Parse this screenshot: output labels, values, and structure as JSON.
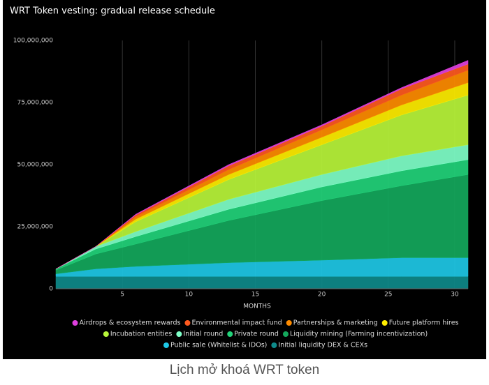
{
  "chart_data": {
    "type": "stacked_area",
    "title": "WRT Token vesting: gradual release schedule",
    "x_label": "MONTHS",
    "x": [
      0,
      3,
      6,
      13,
      20,
      26,
      31
    ],
    "xlim": [
      0,
      31
    ],
    "xticks": [
      5,
      10,
      15,
      20,
      25,
      30
    ],
    "ylim": [
      0,
      100000000
    ],
    "yticks": [
      0,
      {
        "value": 25000000,
        "label": "25,000,000"
      },
      {
        "value": 50000000,
        "label": "50,000,000"
      },
      {
        "value": 75000000,
        "label": "75,000,000"
      },
      {
        "value": 100000000,
        "label": "100,000,000"
      }
    ],
    "grid": true,
    "series": [
      {
        "name": "Initial liquidity DEX & CEXs",
        "color": "#0e8a8a",
        "values": [
          5000000,
          5000000,
          5000000,
          5000000,
          5000000,
          5000000,
          5000000
        ]
      },
      {
        "name": "Public sale (Whitelist & IDOs)",
        "color": "#1ec8e6",
        "values": [
          1000000,
          3000000,
          4000000,
          5500000,
          6500000,
          7500000,
          7500000
        ]
      },
      {
        "name": "Liquidity mining (Farming incentivization)",
        "color": "#14a85c",
        "values": [
          1500000,
          6000000,
          9000000,
          17000000,
          24000000,
          29000000,
          33500000
        ]
      },
      {
        "name": "Private round",
        "color": "#22d37a",
        "values": [
          500000,
          2000000,
          3000000,
          4500000,
          5500000,
          6000000,
          6000000
        ]
      },
      {
        "name": "Initial round",
        "color": "#7fffc8",
        "values": [
          0,
          1000000,
          2000000,
          4000000,
          5000000,
          6000000,
          6000000
        ]
      },
      {
        "name": "Incubation entities",
        "color": "#b8f53a",
        "values": [
          0,
          0,
          4000000,
          8000000,
          12000000,
          16500000,
          20000000
        ]
      },
      {
        "name": "Future platform hires",
        "color": "#ffee00",
        "values": [
          0,
          0,
          1000000,
          2000000,
          3000000,
          4000000,
          5000000
        ]
      },
      {
        "name": "Partnerships & marketing",
        "color": "#ff8c00",
        "values": [
          0,
          0,
          1000000,
          2000000,
          3000000,
          4000000,
          5000000
        ]
      },
      {
        "name": "Environmental impact fund",
        "color": "#ff5a1f",
        "values": [
          0,
          0,
          700000,
          1500000,
          1500000,
          2500000,
          2500000
        ]
      },
      {
        "name": "Airdrops & ecosystem rewards",
        "color": "#e040e0",
        "values": [
          0,
          0,
          300000,
          500000,
          500000,
          500000,
          1500000
        ]
      }
    ]
  },
  "caption": "Lịch mở khoá WRT token"
}
